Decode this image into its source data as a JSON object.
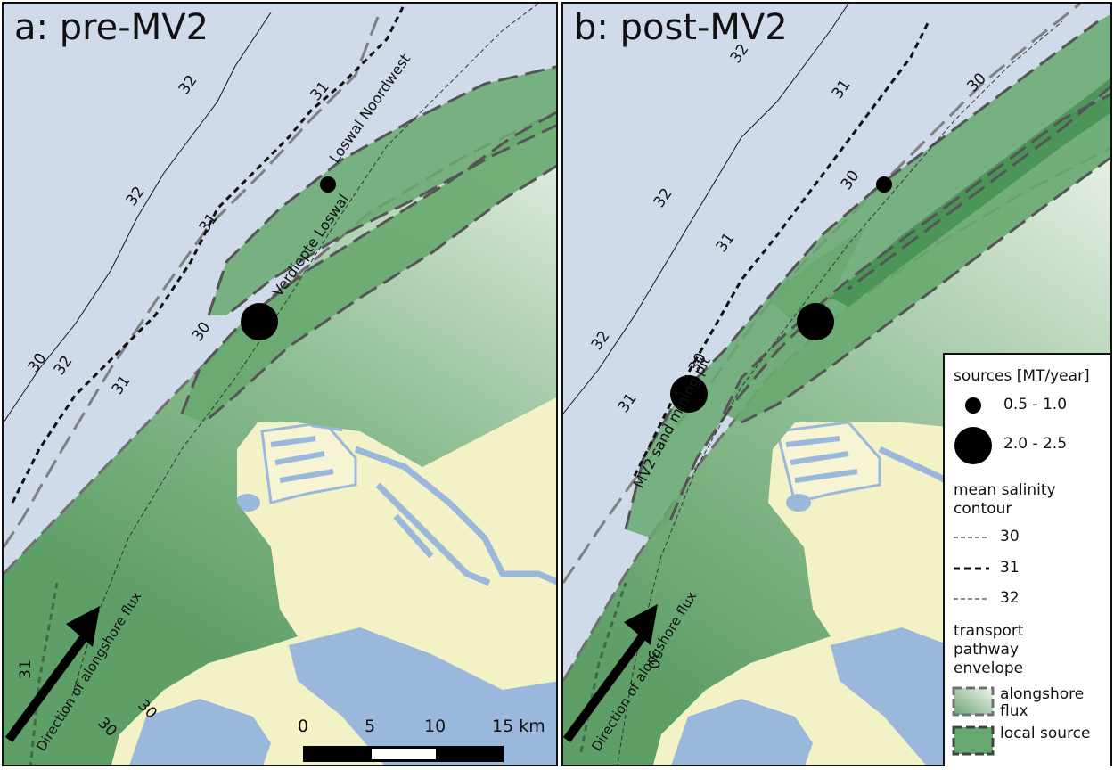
{
  "panels": {
    "a": {
      "title": "a: pre-MV2",
      "place_labels": {
        "loswal_nw": "Loswal Noordwest",
        "verdiepte": "Verdiepte Loswal"
      },
      "contour_labels": [
        "30",
        "30",
        "30",
        "30",
        "31",
        "31",
        "31",
        "31",
        "32",
        "32",
        "32"
      ]
    },
    "b": {
      "title": "b: post-MV2",
      "place_labels": {
        "mv2": "MV2 sand mining pit"
      },
      "contour_labels": [
        "30",
        "30",
        "30",
        "30",
        "31",
        "31",
        "31",
        "32",
        "32",
        "32"
      ]
    }
  },
  "arrow_label": "Direction of alongshore flux",
  "scale_bar": {
    "ticks": [
      "0",
      "5",
      "10",
      "15 km"
    ]
  },
  "legend": {
    "sources_title": "sources [MT/year]",
    "sources": [
      {
        "label": "0.5 - 1.0"
      },
      {
        "label": "2.0 - 2.5"
      }
    ],
    "salinity_title": "mean salinity contour",
    "salinity": [
      {
        "label": "30"
      },
      {
        "label": "31"
      },
      {
        "label": "32"
      }
    ],
    "envelope_title": "transport pathway envelope",
    "envelopes": [
      {
        "label": "alongshore flux"
      },
      {
        "label": "local source"
      }
    ]
  },
  "colors": {
    "sea": "#cfdbe9",
    "land": "#f3f1c6",
    "water": "#9ab8dc",
    "envelope_dark": "#5e9e67",
    "envelope_light": "#dbe8dd",
    "local_source": "#67a86f",
    "core": "#3f8c4d",
    "dash": "#707070"
  }
}
